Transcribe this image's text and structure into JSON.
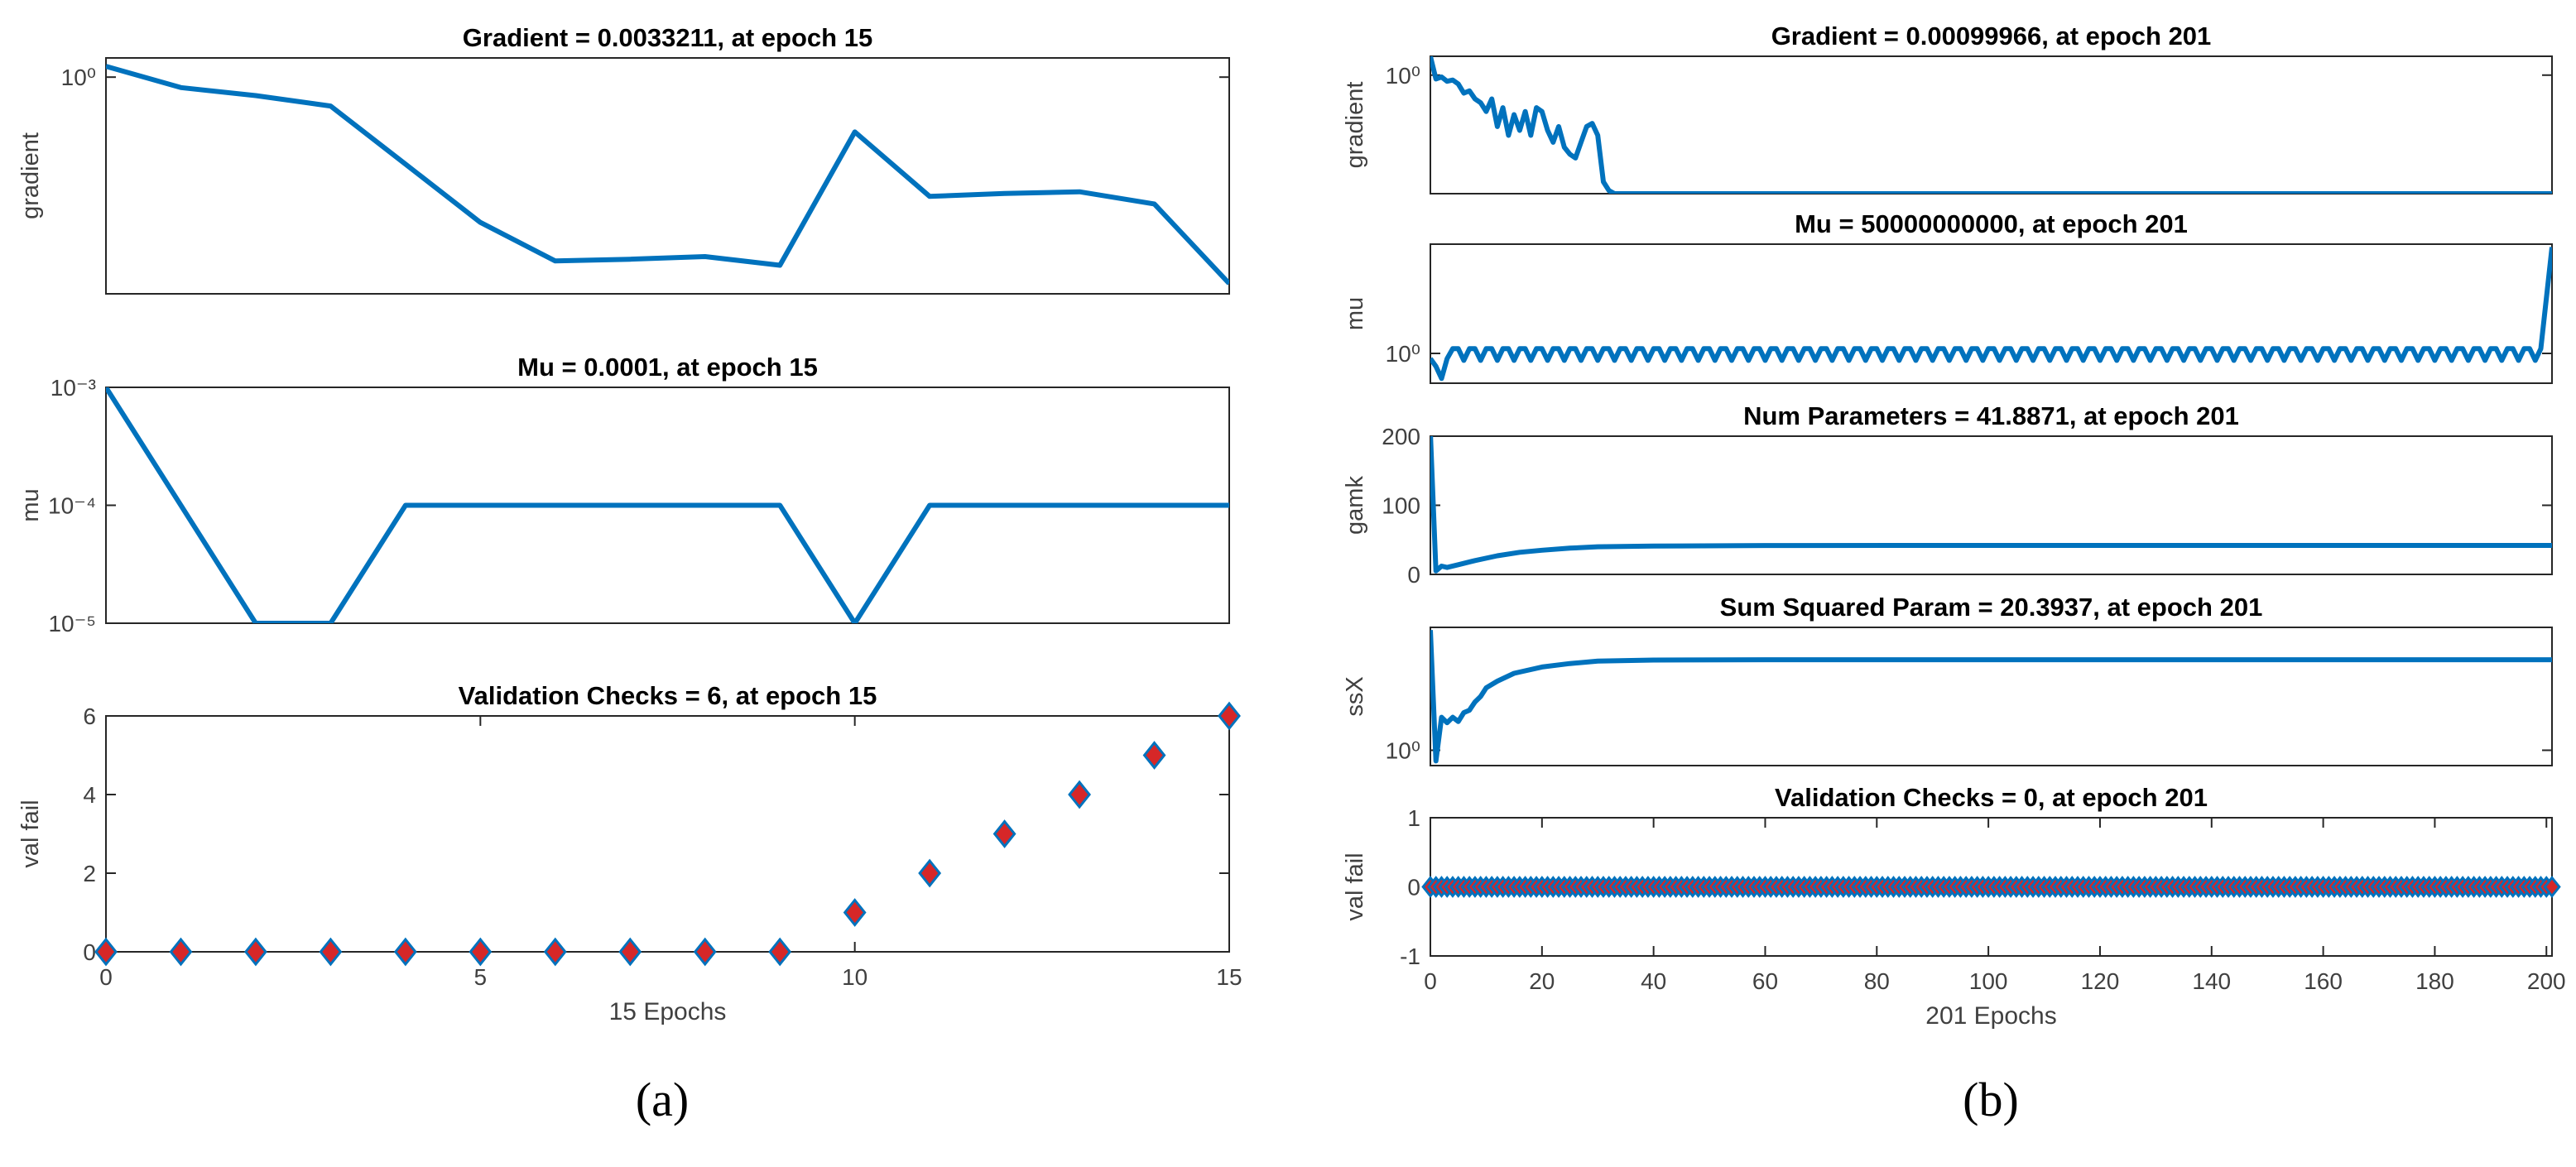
{
  "figure_labels": {
    "a": "(a)",
    "b": "(b)"
  },
  "colors": {
    "line": "#0072BD",
    "marker_fill": "#D62728",
    "marker_edge": "#0072BD",
    "axis": "#262626",
    "tick_label": "#404040"
  },
  "chart_data": [
    {
      "id": "a1",
      "panel": "a",
      "type": "line",
      "title": "Gradient = 0.0033211, at epoch 15",
      "ylabel": "gradient",
      "xlabel": "",
      "yscale": "log",
      "xlim": [
        0,
        15
      ],
      "ylim": [
        0.0025,
        1.7
      ],
      "yticks": [
        {
          "v": 1,
          "label": "10⁰"
        }
      ],
      "xticks": [],
      "x": [
        0,
        1,
        2,
        3,
        4,
        5,
        6,
        7,
        8,
        9,
        10,
        11,
        12,
        13,
        14,
        15
      ],
      "values": [
        1.35,
        0.75,
        0.6,
        0.45,
        0.09,
        0.018,
        0.0062,
        0.0065,
        0.007,
        0.0055,
        0.22,
        0.037,
        0.04,
        0.042,
        0.03,
        0.0033211
      ]
    },
    {
      "id": "a2",
      "panel": "a",
      "type": "line",
      "title": "Mu = 0.0001, at epoch 15",
      "ylabel": "mu",
      "xlabel": "",
      "yscale": "log",
      "xlim": [
        0,
        15
      ],
      "ylim": [
        1e-05,
        0.001
      ],
      "yticks": [
        {
          "v": 0.001,
          "label": "10⁻³"
        },
        {
          "v": 0.0001,
          "label": "10⁻⁴"
        },
        {
          "v": 1e-05,
          "label": "10⁻⁵"
        }
      ],
      "xticks": [],
      "x": [
        0,
        1,
        2,
        3,
        4,
        5,
        6,
        7,
        8,
        9,
        10,
        11,
        12,
        13,
        14,
        15
      ],
      "values": [
        0.001,
        0.0001,
        1e-05,
        1e-05,
        0.0001,
        0.0001,
        0.0001,
        0.0001,
        0.0001,
        0.0001,
        1e-05,
        0.0001,
        0.0001,
        0.0001,
        0.0001,
        0.0001
      ]
    },
    {
      "id": "a3",
      "panel": "a",
      "type": "scatter",
      "title": "Validation Checks = 6, at epoch 15",
      "ylabel": "val fail",
      "xlabel": "15 Epochs",
      "yscale": "linear",
      "xlim": [
        0,
        15
      ],
      "ylim": [
        0,
        6
      ],
      "yticks": [
        {
          "v": 0,
          "label": "0"
        },
        {
          "v": 2,
          "label": "2"
        },
        {
          "v": 4,
          "label": "4"
        },
        {
          "v": 6,
          "label": "6"
        }
      ],
      "xticks": [
        {
          "v": 0,
          "label": "0"
        },
        {
          "v": 5,
          "label": "5"
        },
        {
          "v": 10,
          "label": "10"
        },
        {
          "v": 15,
          "label": "15"
        }
      ],
      "x": [
        0,
        1,
        2,
        3,
        4,
        5,
        6,
        7,
        8,
        9,
        10,
        11,
        12,
        13,
        14,
        15
      ],
      "values": [
        0,
        0,
        0,
        0,
        0,
        0,
        0,
        0,
        0,
        0,
        1,
        2,
        3,
        4,
        5,
        6
      ]
    },
    {
      "id": "b1",
      "panel": "b",
      "type": "line",
      "title": "Gradient = 0.00099966, at epoch 201",
      "ylabel": "gradient",
      "xlabel": "",
      "yscale": "log",
      "xlim": [
        0,
        201
      ],
      "ylim": [
        0.001,
        3
      ],
      "yticks": [
        {
          "v": 1,
          "label": "10⁰"
        }
      ],
      "xticks": [],
      "x": [
        0,
        1,
        2,
        3,
        4,
        5,
        6,
        7,
        8,
        9,
        10,
        11,
        12,
        13,
        14,
        15,
        16,
        17,
        18,
        19,
        20,
        21,
        22,
        23,
        24,
        25,
        26,
        27,
        28,
        29,
        30,
        31,
        32,
        33,
        34,
        35,
        40,
        60,
        80,
        100,
        120,
        140,
        160,
        180,
        201
      ],
      "values": [
        3,
        0.8,
        0.9,
        0.7,
        0.75,
        0.6,
        0.35,
        0.4,
        0.25,
        0.2,
        0.12,
        0.25,
        0.05,
        0.15,
        0.03,
        0.1,
        0.04,
        0.12,
        0.03,
        0.15,
        0.12,
        0.04,
        0.02,
        0.05,
        0.015,
        0.01,
        0.008,
        0.02,
        0.05,
        0.06,
        0.03,
        0.002,
        0.0012,
        0.001,
        0.001,
        0.001,
        0.001,
        0.001,
        0.001,
        0.001,
        0.001,
        0.001,
        0.001,
        0.001,
        0.00099966
      ]
    },
    {
      "id": "b2",
      "panel": "b",
      "type": "line",
      "title": "Mu = 50000000000, at epoch 201",
      "ylabel": "mu",
      "xlabel": "",
      "yscale": "log",
      "xlim": [
        0,
        201
      ],
      "ylim": [
        0.001,
        100000000000
      ],
      "yticks": [
        {
          "v": 1,
          "label": "10⁰"
        }
      ],
      "xticks": [],
      "mu_pattern": {
        "start": [
          0.3,
          0.05,
          0.003,
          0.3,
          3
        ],
        "high": 3,
        "low": 0.2,
        "end": 50000000000
      }
    },
    {
      "id": "b3",
      "panel": "b",
      "type": "line",
      "title": "Num Parameters = 41.8871, at epoch 201",
      "ylabel": "gamk",
      "xlabel": "",
      "yscale": "linear",
      "xlim": [
        0,
        201
      ],
      "ylim": [
        0,
        200
      ],
      "yticks": [
        {
          "v": 0,
          "label": "0"
        },
        {
          "v": 100,
          "label": "100"
        },
        {
          "v": 200,
          "label": "200"
        }
      ],
      "xticks": [],
      "x": [
        0,
        1,
        2,
        3,
        5,
        8,
        12,
        16,
        20,
        25,
        30,
        40,
        60,
        100,
        150,
        201
      ],
      "values": [
        205,
        5,
        12,
        10,
        14,
        20,
        27,
        32,
        35,
        38,
        40,
        41,
        41.8,
        41.9,
        41.9,
        41.8871
      ]
    },
    {
      "id": "b4",
      "panel": "b",
      "type": "line",
      "title": "Sum Squared Param = 20.3937, at epoch 201",
      "ylabel": "ssX",
      "xlabel": "",
      "yscale": "log",
      "xlim": [
        0,
        201
      ],
      "ylim": [
        0.6,
        60
      ],
      "yticks": [
        {
          "v": 1,
          "label": "10⁰"
        }
      ],
      "xticks": [],
      "x": [
        0,
        1,
        2,
        3,
        4,
        5,
        6,
        7,
        8,
        9,
        10,
        12,
        15,
        20,
        25,
        30,
        40,
        60,
        100,
        150,
        201
      ],
      "values": [
        55,
        0.7,
        3,
        2.5,
        3,
        2.6,
        3.5,
        3.8,
        5,
        6,
        8,
        10,
        13,
        16,
        18,
        19.5,
        20.2,
        20.4,
        20.4,
        20.4,
        20.3937
      ]
    },
    {
      "id": "b5",
      "panel": "b",
      "type": "scatter",
      "title": "Validation Checks = 0, at epoch 201",
      "ylabel": "val fail",
      "xlabel": "201 Epochs",
      "yscale": "linear",
      "xlim": [
        0,
        201
      ],
      "ylim": [
        -1,
        1
      ],
      "yticks": [
        {
          "v": -1,
          "label": "-1"
        },
        {
          "v": 0,
          "label": "0"
        },
        {
          "v": 1,
          "label": "1"
        }
      ],
      "xticks": [
        {
          "v": 0,
          "label": "0"
        },
        {
          "v": 20,
          "label": "20"
        },
        {
          "v": 40,
          "label": "40"
        },
        {
          "v": 60,
          "label": "60"
        },
        {
          "v": 80,
          "label": "80"
        },
        {
          "v": 100,
          "label": "100"
        },
        {
          "v": 120,
          "label": "120"
        },
        {
          "v": 140,
          "label": "140"
        },
        {
          "v": 160,
          "label": "160"
        },
        {
          "v": 180,
          "label": "180"
        },
        {
          "v": 200,
          "label": "200"
        }
      ],
      "all_zero_epochs": 201
    }
  ]
}
